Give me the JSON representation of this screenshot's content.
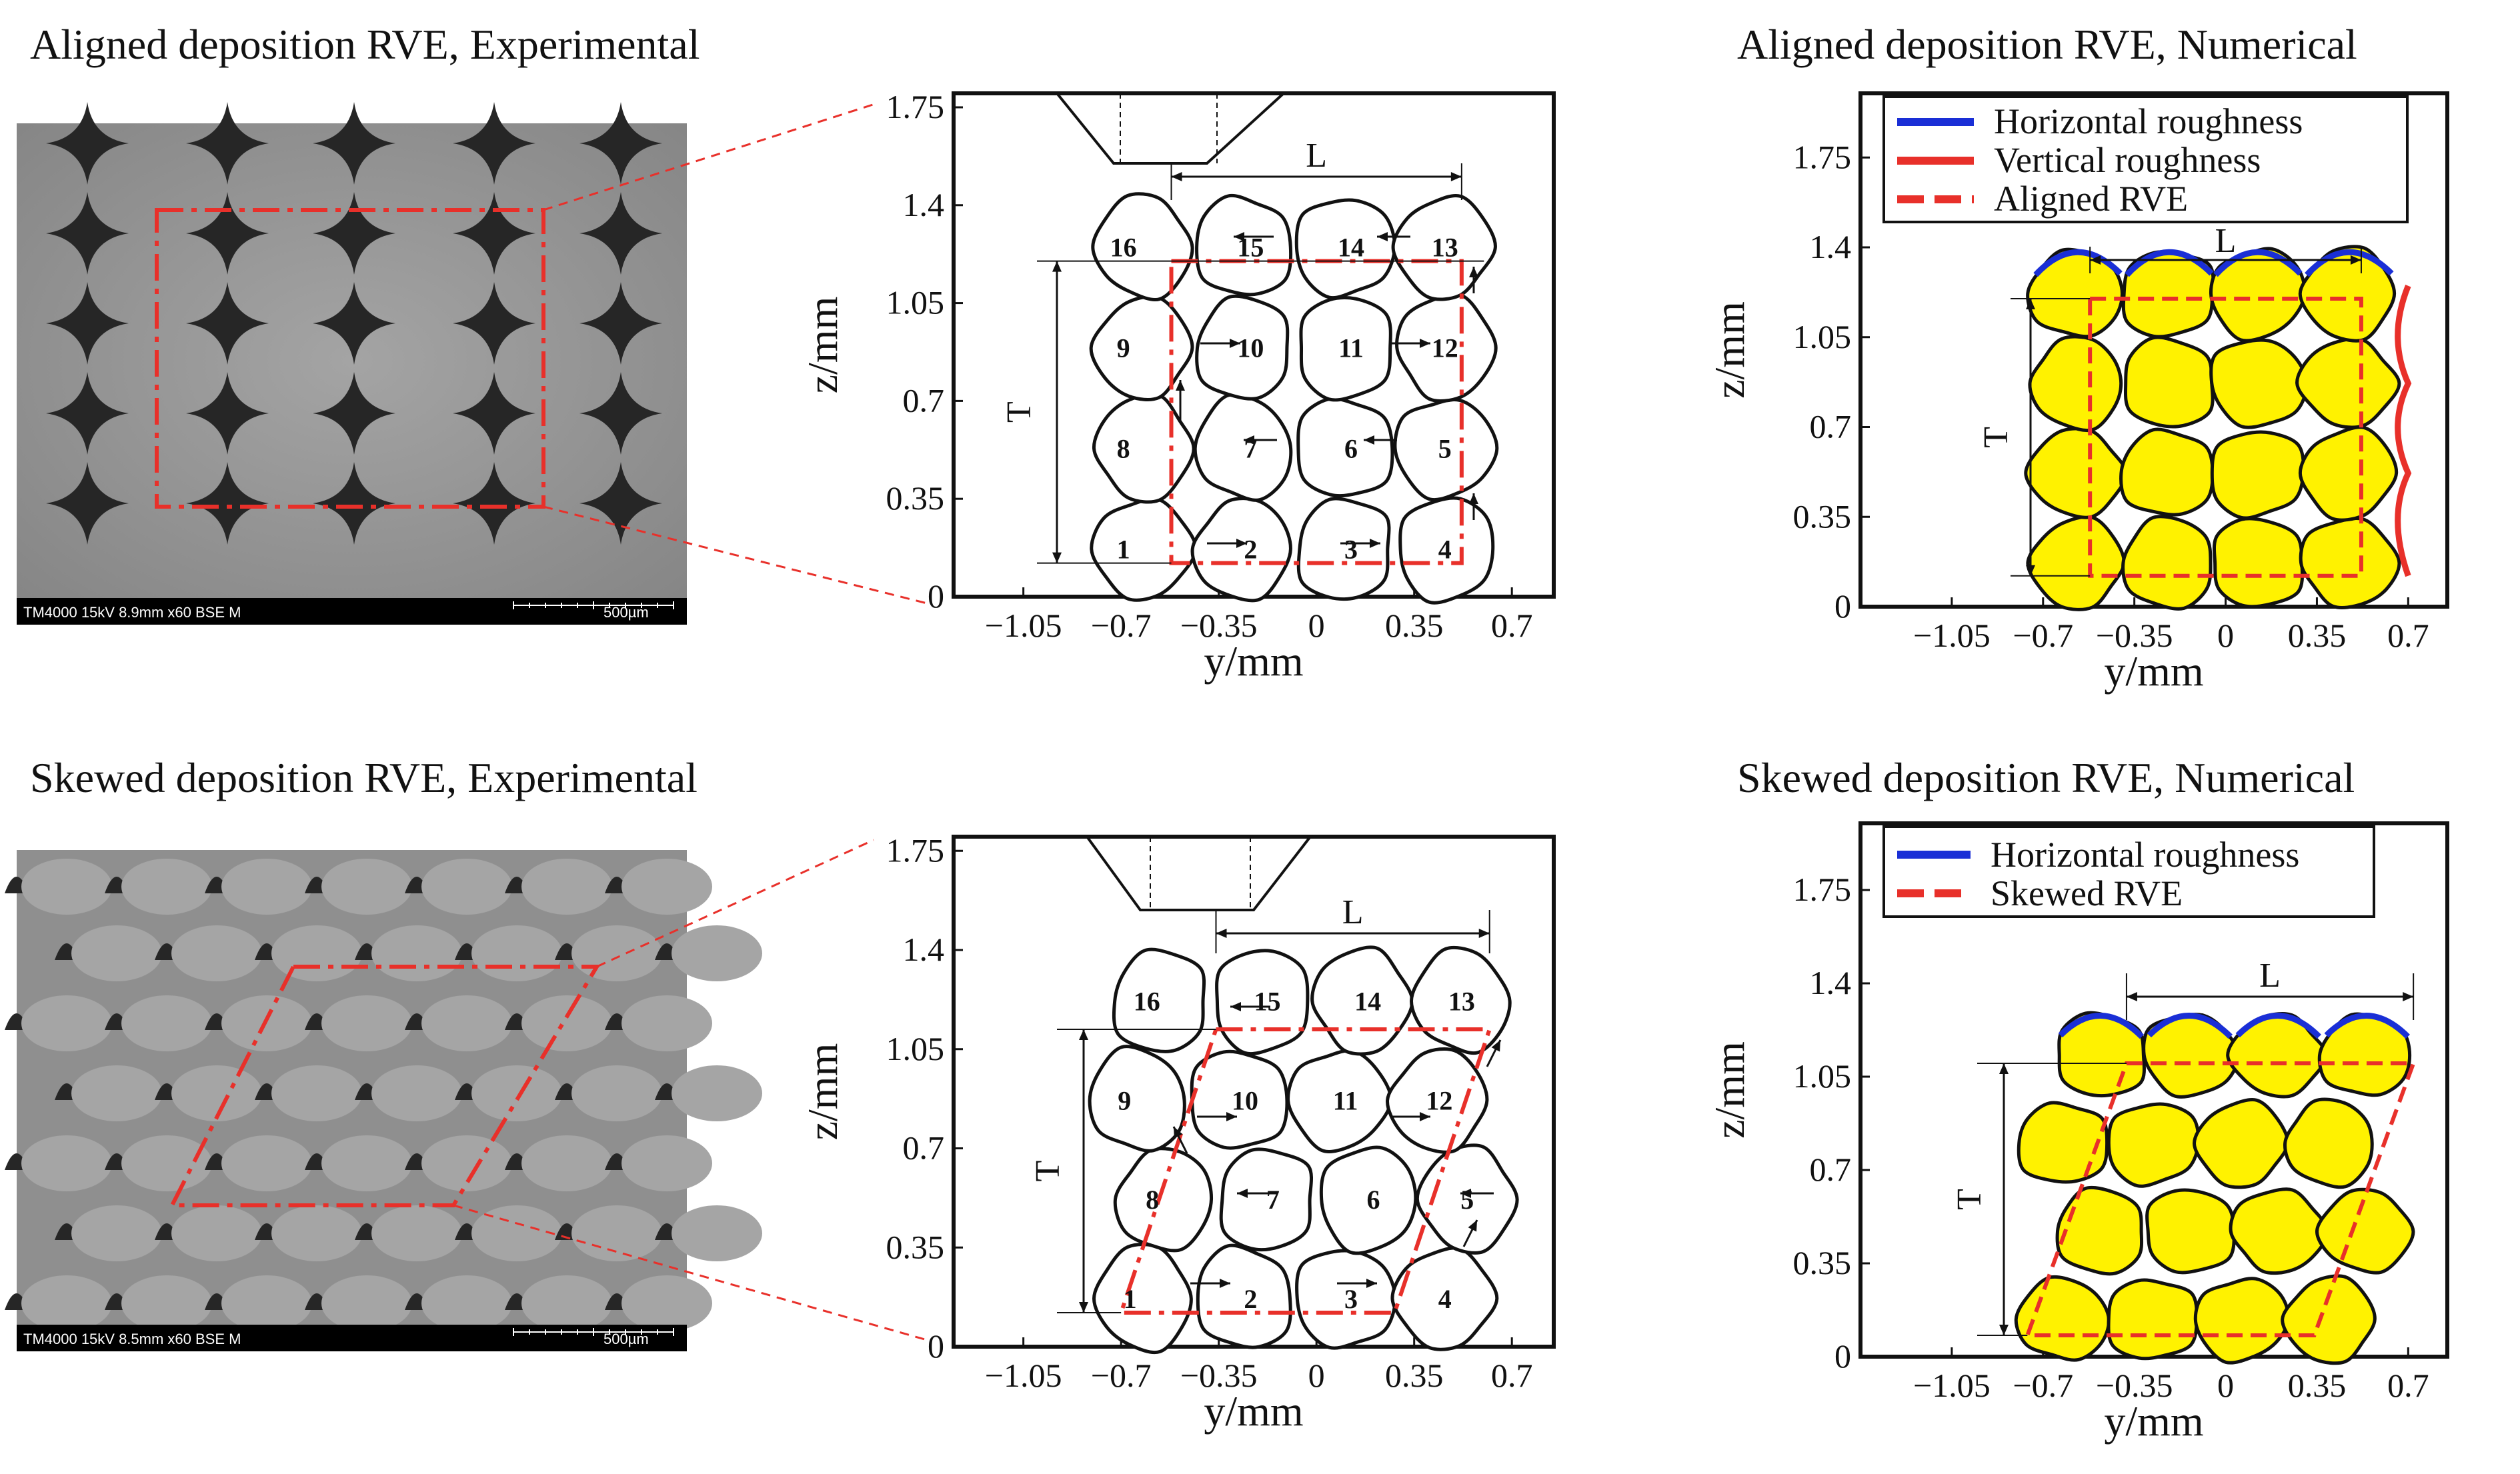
{
  "titles": {
    "aligned_exp": "Aligned deposition RVE, Experimental",
    "aligned_num": "Aligned deposition RVE, Numerical",
    "skewed_exp": "Skewed deposition RVE, Experimental",
    "skewed_num": "Skewed deposition RVE, Numerical"
  },
  "sem": {
    "aligned": {
      "info": "TM4000 15kV 8.9mm x60 BSE M",
      "scale": "500µm"
    },
    "skewed": {
      "info": "TM4000 15kV 8.5mm x60 BSE M",
      "scale": "500µm"
    }
  },
  "axes": {
    "xlabel": "y/mm",
    "ylabel": "z/mm",
    "xticks": [
      "−1.05",
      "−0.7",
      "−0.35",
      "0",
      "0.35",
      "0.7"
    ],
    "yticks_diagram": [
      "0",
      "0.35",
      "0.7",
      "1.05",
      "1.4",
      "1.75"
    ],
    "yticks_numerical": [
      "0",
      "0.35",
      "0.7",
      "1.05",
      "1.4",
      "1.75"
    ]
  },
  "dimension_labels": {
    "length": "L",
    "thickness": "T"
  },
  "filament_numbers": [
    "1",
    "2",
    "3",
    "4",
    "5",
    "6",
    "7",
    "8",
    "9",
    "10",
    "11",
    "12",
    "13",
    "14",
    "15",
    "16"
  ],
  "legend_aligned": [
    "Horizontal roughness",
    "Vertical roughness",
    "Aligned RVE"
  ],
  "legend_skewed": [
    "Horizontal roughness",
    "Skewed RVE"
  ],
  "colors": {
    "rve_line": "#e8302a",
    "horizontal_roughness": "#1a2fd6",
    "vertical_roughness": "#e8302a",
    "filament_fill": "#fff200",
    "sem_dark": "#262626",
    "sem_light": "#9a9a9a"
  },
  "chart_data": [
    {
      "type": "diagram",
      "panel": "aligned-experimental-diagram",
      "xlabel": "y/mm",
      "ylabel": "z/mm",
      "xlim": [
        -1.3,
        0.85
      ],
      "ylim": [
        0,
        1.8
      ]
    },
    {
      "type": "diagram",
      "panel": "aligned-numerical",
      "xlabel": "y/mm",
      "ylabel": "z/mm",
      "xlim": [
        -1.4,
        0.85
      ],
      "ylim": [
        0,
        2.0
      ]
    },
    {
      "type": "diagram",
      "panel": "skewed-experimental-diagram",
      "xlabel": "y/mm",
      "ylabel": "z/mm",
      "xlim": [
        -1.3,
        0.85
      ],
      "ylim": [
        0,
        1.8
      ]
    },
    {
      "type": "diagram",
      "panel": "skewed-numerical",
      "xlabel": "y/mm",
      "ylabel": "z/mm",
      "xlim": [
        -1.4,
        0.85
      ],
      "ylim": [
        0,
        2.0
      ]
    }
  ]
}
